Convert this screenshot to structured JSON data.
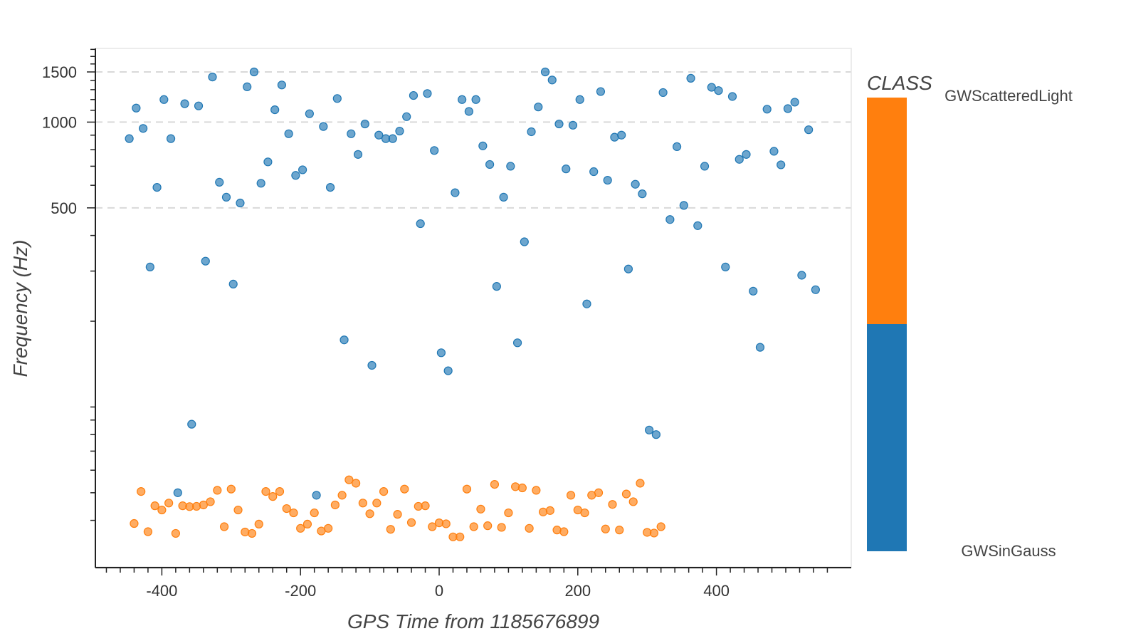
{
  "chart_data": {
    "type": "scatter",
    "title": "",
    "xlabel": "GPS Time from 1185676899",
    "ylabel": "Frequency (Hz)",
    "xlim": [
      -495,
      595
    ],
    "ylim": [
      30,
      2000
    ],
    "y_scale": "log",
    "x_ticks": [
      -400,
      -200,
      0,
      200,
      400
    ],
    "x_tick_labels": [
      "-400",
      "-200",
      "0",
      "200",
      "400"
    ],
    "y_ticks": [
      500,
      1000,
      1500
    ],
    "y_tick_labels": [
      "500",
      "1000",
      "1500"
    ],
    "grid": "horizontal-dashed",
    "legend": {
      "title": "CLASS",
      "placement": "right",
      "labels": [
        "GWScatteredLight",
        "GWSinGauss"
      ],
      "colors": [
        "#ff7f0e",
        "#1f77b4"
      ]
    },
    "series": [
      {
        "name": "GWSinGauss",
        "color": "#1f77b4",
        "points": [
          [
            -447,
            875
          ],
          [
            -437,
            1120
          ],
          [
            -427,
            950
          ],
          [
            -417,
            310
          ],
          [
            -407,
            590
          ],
          [
            -397,
            1200
          ],
          [
            -387,
            875
          ],
          [
            -377,
            50
          ],
          [
            -367,
            1160
          ],
          [
            -357,
            87
          ],
          [
            -347,
            1140
          ],
          [
            -337,
            325
          ],
          [
            -327,
            1440
          ],
          [
            -317,
            615
          ],
          [
            -307,
            545
          ],
          [
            -297,
            270
          ],
          [
            -287,
            520
          ],
          [
            -277,
            1330
          ],
          [
            -267,
            1500
          ],
          [
            -257,
            610
          ],
          [
            -247,
            725
          ],
          [
            -237,
            1105
          ],
          [
            -227,
            1350
          ],
          [
            -217,
            910
          ],
          [
            -207,
            650
          ],
          [
            -197,
            680
          ],
          [
            -187,
            1070
          ],
          [
            -177,
            49
          ],
          [
            -167,
            965
          ],
          [
            -157,
            590
          ],
          [
            -147,
            1210
          ],
          [
            -137,
            172
          ],
          [
            -127,
            910
          ],
          [
            -117,
            770
          ],
          [
            -107,
            985
          ],
          [
            -97,
            140
          ],
          [
            -87,
            900
          ],
          [
            -77,
            875
          ],
          [
            -67,
            875
          ],
          [
            -57,
            930
          ],
          [
            -47,
            1045
          ],
          [
            -37,
            1240
          ],
          [
            -27,
            440
          ],
          [
            -17,
            1260
          ],
          [
            -7,
            795
          ],
          [
            3,
            155
          ],
          [
            13,
            134
          ],
          [
            23,
            565
          ],
          [
            33,
            1200
          ],
          [
            43,
            1090
          ],
          [
            53,
            1200
          ],
          [
            63,
            825
          ],
          [
            73,
            710
          ],
          [
            83,
            265
          ],
          [
            93,
            545
          ],
          [
            103,
            700
          ],
          [
            113,
            168
          ],
          [
            123,
            380
          ],
          [
            133,
            925
          ],
          [
            143,
            1130
          ],
          [
            153,
            1500
          ],
          [
            163,
            1405
          ],
          [
            173,
            985
          ],
          [
            183,
            685
          ],
          [
            193,
            975
          ],
          [
            203,
            1200
          ],
          [
            213,
            230
          ],
          [
            223,
            670
          ],
          [
            233,
            1280
          ],
          [
            243,
            625
          ],
          [
            253,
            885
          ],
          [
            263,
            900
          ],
          [
            273,
            305
          ],
          [
            283,
            605
          ],
          [
            293,
            560
          ],
          [
            303,
            83
          ],
          [
            313,
            80
          ],
          [
            323,
            1270
          ],
          [
            333,
            455
          ],
          [
            343,
            820
          ],
          [
            353,
            510
          ],
          [
            363,
            1425
          ],
          [
            373,
            433
          ],
          [
            383,
            700
          ],
          [
            393,
            1325
          ],
          [
            403,
            1290
          ],
          [
            413,
            310
          ],
          [
            423,
            1230
          ],
          [
            433,
            740
          ],
          [
            443,
            770
          ],
          [
            453,
            255
          ],
          [
            463,
            162
          ],
          [
            473,
            1110
          ],
          [
            483,
            790
          ],
          [
            493,
            708
          ],
          [
            503,
            1115
          ],
          [
            513,
            1175
          ],
          [
            523,
            290
          ],
          [
            533,
            940
          ],
          [
            543,
            258
          ]
        ]
      },
      {
        "name": "GWScatteredLight",
        "color": "#ff7f0e",
        "points": [
          [
            -440,
            39
          ],
          [
            -430,
            50.5
          ],
          [
            -420,
            36.5
          ],
          [
            -410,
            45
          ],
          [
            -400,
            43.5
          ],
          [
            -390,
            46
          ],
          [
            -380,
            36
          ],
          [
            -370,
            45
          ],
          [
            -360,
            44.7
          ],
          [
            -350,
            44.8
          ],
          [
            -340,
            45.3
          ],
          [
            -330,
            46.5
          ],
          [
            -320,
            51
          ],
          [
            -310,
            38
          ],
          [
            -300,
            51.5
          ],
          [
            -290,
            43.5
          ],
          [
            -280,
            36.4
          ],
          [
            -270,
            36
          ],
          [
            -260,
            38.8
          ],
          [
            -250,
            50.5
          ],
          [
            -240,
            48.5
          ],
          [
            -230,
            50.5
          ],
          [
            -220,
            44
          ],
          [
            -210,
            42.5
          ],
          [
            -200,
            37.5
          ],
          [
            -190,
            38.8
          ],
          [
            -180,
            42.5
          ],
          [
            -170,
            36.7
          ],
          [
            -160,
            37.5
          ],
          [
            -150,
            45.3
          ],
          [
            -140,
            49
          ],
          [
            -130,
            55.5
          ],
          [
            -120,
            54
          ],
          [
            -110,
            46
          ],
          [
            -100,
            42.2
          ],
          [
            -90,
            46
          ],
          [
            -80,
            50.5
          ],
          [
            -70,
            37.2
          ],
          [
            -60,
            42
          ],
          [
            -50,
            51.5
          ],
          [
            -40,
            39.3
          ],
          [
            -30,
            44.8
          ],
          [
            -20,
            45
          ],
          [
            -10,
            38
          ],
          [
            0,
            39.2
          ],
          [
            10,
            38.9
          ],
          [
            20,
            35
          ],
          [
            30,
            35
          ],
          [
            40,
            51.5
          ],
          [
            50,
            38
          ],
          [
            60,
            43.8
          ],
          [
            70,
            38.3
          ],
          [
            80,
            53.5
          ],
          [
            90,
            37.8
          ],
          [
            100,
            42.5
          ],
          [
            110,
            52.5
          ],
          [
            120,
            52
          ],
          [
            130,
            37.5
          ],
          [
            140,
            51
          ],
          [
            150,
            42.8
          ],
          [
            160,
            43.3
          ],
          [
            170,
            37
          ],
          [
            180,
            36.5
          ],
          [
            190,
            49
          ],
          [
            200,
            43.5
          ],
          [
            210,
            42.5
          ],
          [
            220,
            49
          ],
          [
            230,
            50
          ],
          [
            240,
            37.3
          ],
          [
            250,
            45.5
          ],
          [
            260,
            37
          ],
          [
            270,
            49.5
          ],
          [
            280,
            46.5
          ],
          [
            290,
            54
          ],
          [
            300,
            36.3
          ],
          [
            310,
            36.1
          ],
          [
            320,
            38
          ]
        ]
      }
    ]
  }
}
